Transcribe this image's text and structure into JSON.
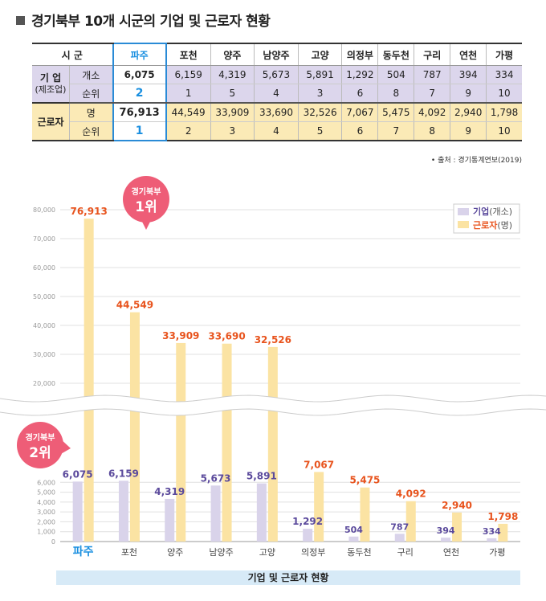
{
  "title": "경기북부 10개 시군의 기업 및 근로자 현황",
  "table": {
    "header_label": "시  군",
    "cities": [
      "파주",
      "포천",
      "양주",
      "남양주",
      "고양",
      "의정부",
      "동두천",
      "구리",
      "연천",
      "가평"
    ],
    "biz_group": "기  업",
    "biz_group_sub": "(제조업)",
    "biz_count_label": "개소",
    "biz_rank_label": "순위",
    "biz_counts": [
      "6,075",
      "6,159",
      "4,319",
      "5,673",
      "5,891",
      "1,292",
      "504",
      "787",
      "394",
      "334"
    ],
    "biz_ranks": [
      "2",
      "1",
      "5",
      "4",
      "3",
      "6",
      "8",
      "7",
      "9",
      "10"
    ],
    "wrk_group": "근로자",
    "wrk_count_label": "명",
    "wrk_rank_label": "순위",
    "wrk_counts": [
      "76,913",
      "44,549",
      "33,909",
      "33,690",
      "32,526",
      "7,067",
      "5,475",
      "4,092",
      "2,940",
      "1,798"
    ],
    "wrk_ranks": [
      "1",
      "2",
      "3",
      "4",
      "5",
      "6",
      "7",
      "8",
      "9",
      "10"
    ]
  },
  "source": "• 출처 : 경기통계연보(2019)",
  "footer": "기업 및 근로자 현황",
  "badges": {
    "workers": {
      "line1": "경기북부",
      "line2": "1위"
    },
    "biz": {
      "line1": "경기북부",
      "line2": "2위"
    }
  },
  "colors": {
    "biz_bar": "#d9d3ea",
    "wrk_bar": "#fbe3a3",
    "biz_label": "#5b4a9c",
    "wrk_label": "#e8541e",
    "badge": "#ee5d77",
    "accent": "#1a8fe0"
  },
  "chart_data": {
    "type": "bar",
    "categories": [
      "파주",
      "포천",
      "양주",
      "남양주",
      "고양",
      "의정부",
      "동두천",
      "구리",
      "연천",
      "가평"
    ],
    "series": [
      {
        "name": "기업(개소)",
        "values": [
          6075,
          6159,
          4319,
          5673,
          5891,
          1292,
          504,
          787,
          394,
          334
        ],
        "labels": [
          "6,075",
          "6,159",
          "4,319",
          "5,673",
          "5,891",
          "1,292",
          "504",
          "787",
          "394",
          "334"
        ]
      },
      {
        "name": "근로자(명)",
        "values": [
          76913,
          44549,
          33909,
          33690,
          32526,
          7067,
          5475,
          4092,
          2940,
          1798
        ],
        "labels": [
          "76,913",
          "44,549",
          "33,909",
          "33,690",
          "32,526",
          "7,067",
          "5,475",
          "4,092",
          "2,940",
          "1,798"
        ]
      }
    ],
    "legend": {
      "biz_main": "기업",
      "biz_unit": "(개소)",
      "wrk_main": "근로자",
      "wrk_unit": "(명)"
    },
    "y_ticks_upper": [
      "80,000",
      "70,000",
      "60,000",
      "50,000",
      "40,000",
      "30,000",
      "20,000"
    ],
    "y_ticks_lower": [
      "6,000",
      "5,000",
      "4,000",
      "3,000",
      "2,000",
      "1,000",
      "0"
    ],
    "axis_break": true,
    "ylim_lower": [
      0,
      7000
    ],
    "ylim_upper": [
      20000,
      80000
    ],
    "legend_position": "top-right"
  }
}
